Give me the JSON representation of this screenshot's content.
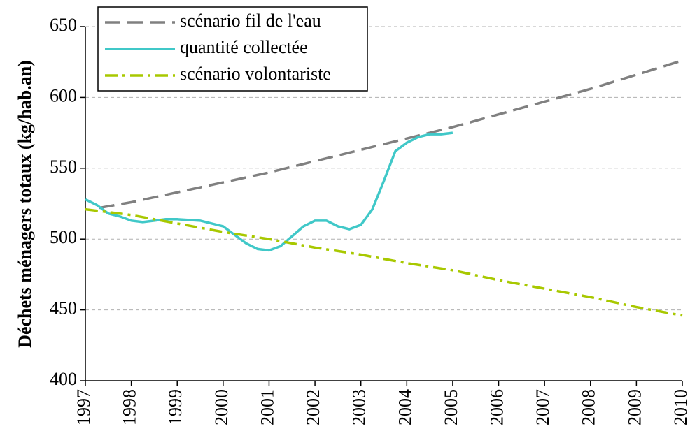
{
  "chart_data": {
    "type": "line",
    "ylabel": "Déchets ménagers totaux (kg/hab.an)",
    "xlim": [
      1997,
      2010
    ],
    "xticks": [
      1997,
      1998,
      1999,
      2000,
      2001,
      2002,
      2003,
      2004,
      2005,
      2006,
      2007,
      2008,
      2009,
      2010
    ],
    "ylim": [
      400,
      650
    ],
    "yticks": [
      400,
      450,
      500,
      550,
      600,
      650
    ],
    "grid": true,
    "legend": "top-left",
    "series": [
      {
        "name": "scénario fil de l'eau",
        "color": "#808080",
        "dash": "dashed",
        "x": [
          1997.3,
          1998,
          1999,
          2000,
          2001,
          2002,
          2003,
          2004,
          2005,
          2006,
          2007,
          2008,
          2009,
          2010
        ],
        "values": [
          522,
          526,
          533,
          540,
          547,
          555,
          563,
          571,
          579,
          588,
          597,
          606,
          616,
          626
        ]
      },
      {
        "name": "quantité collectée",
        "color": "#40c8c8",
        "dash": "solid",
        "x": [
          1997,
          1997.25,
          1997.5,
          1997.75,
          1998,
          1998.25,
          1998.5,
          1998.75,
          1999,
          1999.5,
          2000,
          2000.25,
          2000.5,
          2000.75,
          2001,
          2001.25,
          2001.5,
          2001.75,
          2002,
          2002.25,
          2002.5,
          2002.75,
          2003,
          2003.25,
          2003.5,
          2003.75,
          2004,
          2004.25,
          2004.5,
          2004.75,
          2005
        ],
        "values": [
          528,
          524,
          518,
          516,
          513,
          512,
          513,
          514,
          514,
          513,
          509,
          503,
          497,
          493,
          492,
          495,
          502,
          509,
          513,
          513,
          509,
          507,
          510,
          521,
          541,
          562,
          568,
          572,
          574,
          574,
          575
        ]
      },
      {
        "name": "scénario volontariste",
        "color": "#a8c800",
        "dash": "dashdot",
        "x": [
          1997,
          1998,
          1999,
          2000,
          2001,
          2002,
          2003,
          2004,
          2005,
          2006,
          2007,
          2008,
          2009,
          2010
        ],
        "values": [
          521,
          517,
          511,
          505,
          500,
          494,
          489,
          483,
          478,
          471,
          465,
          459,
          452,
          446
        ]
      }
    ]
  }
}
